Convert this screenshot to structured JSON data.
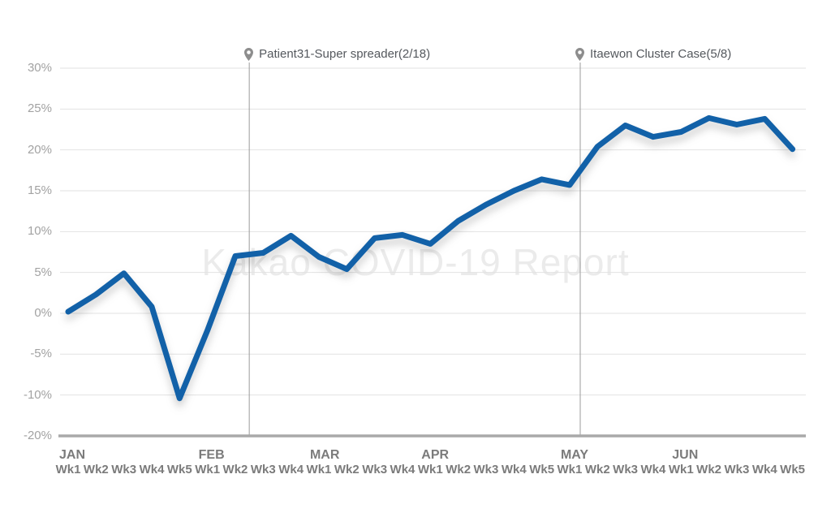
{
  "watermark": "Kakao COVID-19 Report",
  "annotations": [
    {
      "label": "Patient31-Super spreader(2/18)",
      "week_index": 6.5
    },
    {
      "label": "Itaewon Cluster Case(5/8)",
      "week_index": 18.38
    }
  ],
  "chart_data": {
    "type": "line",
    "title": "Kakao COVID-19 Report (watermark)",
    "y_tick_labels": [
      "30%",
      "25%",
      "20%",
      "15%",
      "10%",
      "5%",
      "0%",
      "-5%",
      "-10%",
      "-20%"
    ],
    "ylim": [
      -20,
      30
    ],
    "grid": true,
    "line_color": "#1261a8",
    "months": [
      {
        "label": "JAN",
        "weeks": [
          "Wk1",
          "Wk2",
          "Wk3",
          "Wk4",
          "Wk5"
        ]
      },
      {
        "label": "FEB",
        "weeks": [
          "Wk1",
          "Wk2",
          "Wk3",
          "Wk4"
        ]
      },
      {
        "label": "MAR",
        "weeks": [
          "Wk1",
          "Wk2",
          "Wk3",
          "Wk4"
        ]
      },
      {
        "label": "APR",
        "weeks": [
          "Wk1",
          "Wk2",
          "Wk3",
          "Wk4",
          "Wk5"
        ]
      },
      {
        "label": "MAY",
        "weeks": [
          "Wk1",
          "Wk2",
          "Wk3",
          "Wk4"
        ]
      },
      {
        "label": "JUN",
        "weeks": [
          "Wk1",
          "Wk2",
          "Wk3",
          "Wk4",
          "Wk5"
        ]
      }
    ],
    "categories": [
      "JAN Wk1",
      "JAN Wk2",
      "JAN Wk3",
      "JAN Wk4",
      "JAN Wk5",
      "FEB Wk1",
      "FEB Wk2",
      "FEB Wk3",
      "FEB Wk4",
      "MAR Wk1",
      "MAR Wk2",
      "MAR Wk3",
      "MAR Wk4",
      "APR Wk1",
      "APR Wk2",
      "APR Wk3",
      "APR Wk4",
      "APR Wk5",
      "MAY Wk1",
      "MAY Wk2",
      "MAY Wk3",
      "MAY Wk4",
      "JUN Wk1",
      "JUN Wk2",
      "JUN Wk3",
      "JUN Wk4",
      "JUN Wk5"
    ],
    "values": [
      0.2,
      2.3,
      4.9,
      0.8,
      -10.4,
      -2.1,
      7.0,
      7.4,
      9.5,
      6.9,
      5.4,
      9.2,
      9.6,
      8.5,
      11.3,
      13.3,
      15.0,
      16.4,
      15.7,
      20.4,
      23.0,
      21.6,
      22.2,
      23.9,
      23.1,
      23.8,
      20.1
    ]
  }
}
